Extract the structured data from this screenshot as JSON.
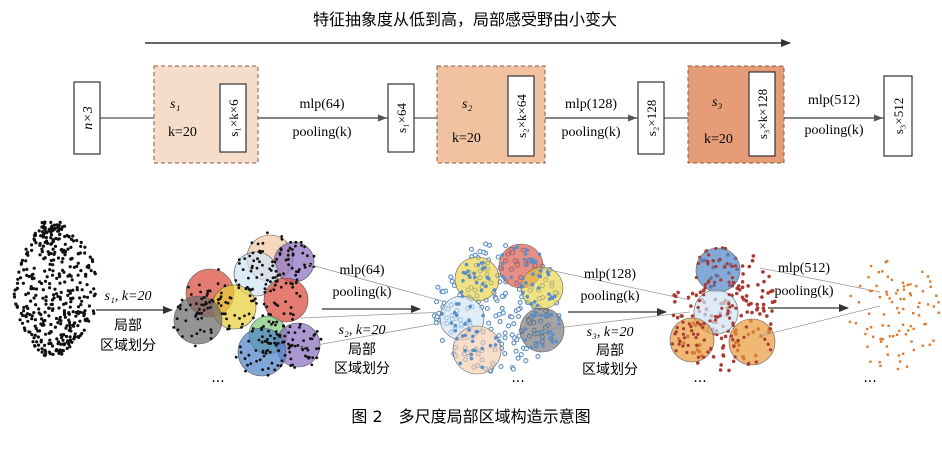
{
  "header": {
    "text": "特征抽象度从低到高，局部感受野由小变大"
  },
  "pipeline": {
    "input_dim": "n×3",
    "stages": [
      {
        "s_label": "s₁",
        "k_label": "k=20",
        "group_dim": "s₁×k×6",
        "mlp": "mlp(64)",
        "pool": "pooling(k)",
        "out_dim": "s₁×64",
        "color": "#f6ddc9"
      },
      {
        "s_label": "s₂",
        "k_label": "k=20",
        "group_dim": "s₂×k×64",
        "mlp": "mlp(128)",
        "pool": "pooling(k)",
        "out_dim": "s₂×128",
        "color": "#f1c2a0"
      },
      {
        "s_label": "s₃",
        "k_label": "k=20",
        "group_dim": "s₃×k×128",
        "mlp": "mlp(512)",
        "pool": "pooling(k)",
        "out_dim": "s₃×512",
        "color": "#e69c76"
      }
    ]
  },
  "illustration": {
    "step1": {
      "top": "s₁, k=20",
      "bottom1": "局部",
      "bottom2": "区域划分"
    },
    "mid1": {
      "mlp": "mlp(64)",
      "pool": "pooling(k)",
      "sk": "s₂, k=20",
      "bottom1": "局部",
      "bottom2": "区域划分"
    },
    "mid2": {
      "mlp": "mlp(128)",
      "pool": "pooling(k)",
      "sk": "s₃, k=20",
      "bottom1": "局部",
      "bottom2": "区域划分"
    },
    "mid3": {
      "mlp": "mlp(512)",
      "pool": "pooling(k)"
    },
    "ellipsis": "...",
    "point_colors": {
      "raw": "#111111",
      "level1": "#5b8fc7",
      "level2": "#a83a32",
      "level3": "#e07a2c"
    },
    "region_colors": [
      "#d94a3a",
      "#e8cf3a",
      "#6b6b6b",
      "#7ec87a",
      "#4f84c8",
      "#8a6fc0",
      "#f3c9a8",
      "#cfe3f2",
      "#e89a3a"
    ]
  },
  "caption": "图 2　多尺度局部区域构造示意图"
}
